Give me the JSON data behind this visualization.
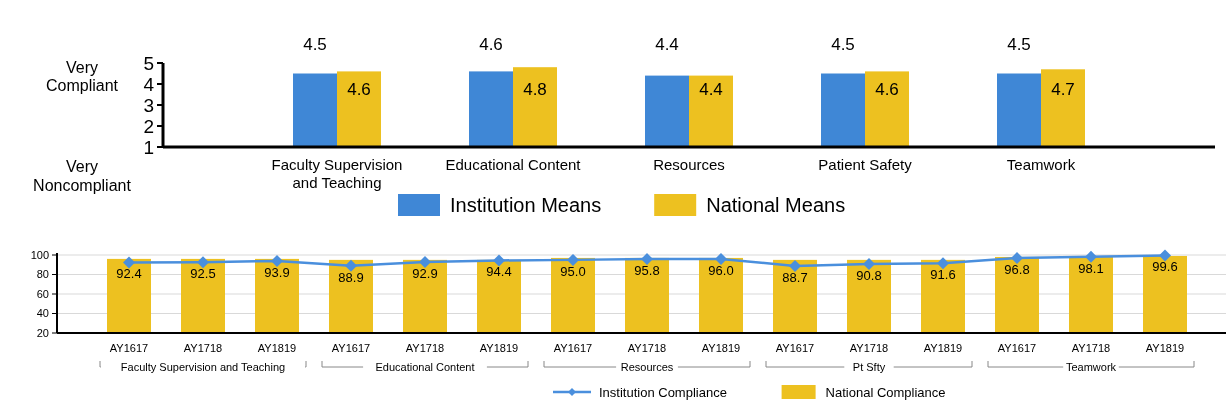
{
  "chart_data": [
    {
      "type": "bar",
      "categories": [
        "Faculty Supervision and Teaching",
        "Educational Content",
        "Resources",
        "Patient Safety",
        "Teamwork"
      ],
      "series": [
        {
          "name": "Institution Means",
          "color": "#3f87d6",
          "values": [
            4.5,
            4.6,
            4.4,
            4.5,
            4.5
          ]
        },
        {
          "name": "National Means",
          "color": "#edc120",
          "values": [
            4.6,
            4.8,
            4.4,
            4.6,
            4.7
          ]
        }
      ],
      "ylim": [
        1,
        5
      ],
      "yticks": [
        1,
        2,
        3,
        4,
        5
      ],
      "data_labels": true,
      "grid": false,
      "legend": "bottom",
      "annotations": [
        "Very Compliant",
        "Very Noncompliant"
      ]
    },
    {
      "type": "bar",
      "categories": [
        "AY1617",
        "AY1718",
        "AY1819",
        "AY1617",
        "AY1718",
        "AY1819",
        "AY1617",
        "AY1718",
        "AY1819",
        "AY1617",
        "AY1718",
        "AY1819",
        "AY1617",
        "AY1718",
        "AY1819"
      ],
      "series": [
        {
          "name": "Institution Compliance",
          "type": "line",
          "color": "#4a8fdd",
          "marker": "diamond",
          "values": [
            92.4,
            92.5,
            93.9,
            88.9,
            92.9,
            94.4,
            95.0,
            95.8,
            96.0,
            88.7,
            90.8,
            91.6,
            96.8,
            98.1,
            99.6
          ],
          "value_labels": [
            "92.4",
            "92.5",
            "93.9",
            "88.9",
            "92.9",
            "94.4",
            "95.0",
            "95.8",
            "96.0",
            "88.7",
            "90.8",
            "91.6",
            "96.8",
            "98.1",
            "99.6"
          ]
        },
        {
          "name": "National Compliance",
          "color": "#edc120",
          "values": [
            96,
            96,
            96,
            95,
            95,
            95,
            97,
            97,
            97,
            95,
            95,
            95,
            98,
            98,
            99
          ]
        }
      ],
      "ylim": [
        20,
        100
      ],
      "yticks": [
        20,
        40,
        60,
        80,
        100
      ],
      "grid": "y",
      "legend": "bottom",
      "annotations": [
        "Faculty Supervision and Teaching",
        "Educational Content",
        "Resources",
        "Pt Sfty",
        "Teamwork"
      ]
    }
  ]
}
